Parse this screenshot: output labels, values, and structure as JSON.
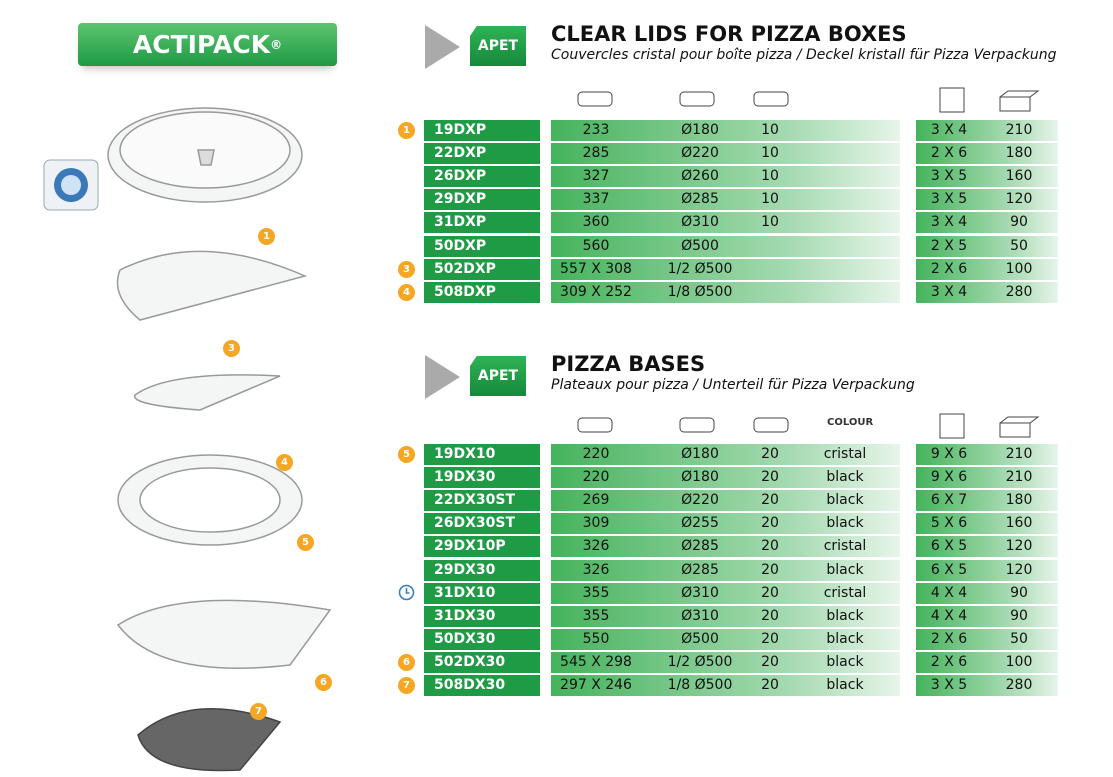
{
  "brand": {
    "name": "ACTIPACK",
    "mark": "®"
  },
  "images": [
    {
      "label": "1"
    },
    {
      "label": "3"
    },
    {
      "label": "4"
    },
    {
      "label": "5"
    },
    {
      "label": "6"
    },
    {
      "label": "7"
    }
  ],
  "sections": [
    {
      "badge": "APET",
      "title": "CLEAR LIDS FOR PIZZA BOXES",
      "subtitle": "Couvercles cristal pour boîte pizza / Deckel kristall für Pizza Verpackung",
      "colour_header": null,
      "rows": [
        {
          "marker": "1",
          "code": "19DXP",
          "size": "233",
          "diameter": "Ø180",
          "height": "10",
          "colour": null,
          "pack": "3 X 4",
          "qty": "210"
        },
        {
          "marker": null,
          "code": "22DXP",
          "size": "285",
          "diameter": "Ø220",
          "height": "10",
          "colour": null,
          "pack": "2 X 6",
          "qty": "180"
        },
        {
          "marker": null,
          "code": "26DXP",
          "size": "327",
          "diameter": "Ø260",
          "height": "10",
          "colour": null,
          "pack": "3 X 5",
          "qty": "160"
        },
        {
          "marker": null,
          "code": "29DXP",
          "size": "337",
          "diameter": "Ø285",
          "height": "10",
          "colour": null,
          "pack": "3 X 5",
          "qty": "120"
        },
        {
          "marker": null,
          "code": "31DXP",
          "size": "360",
          "diameter": "Ø310",
          "height": "10",
          "colour": null,
          "pack": "3 X 4",
          "qty": "90"
        },
        {
          "marker": null,
          "code": "50DXP",
          "size": "560",
          "diameter": "Ø500",
          "height": null,
          "colour": null,
          "pack": "2 X 5",
          "qty": "50"
        },
        {
          "marker": "3",
          "code": "502DXP",
          "size": "557 X 308",
          "diameter": "1/2 Ø500",
          "height": null,
          "colour": null,
          "pack": "2 X 6",
          "qty": "100"
        },
        {
          "marker": "4",
          "code": "508DXP",
          "size": "309 X 252",
          "diameter": "1/8 Ø500",
          "height": null,
          "colour": null,
          "pack": "3 X 4",
          "qty": "280"
        }
      ]
    },
    {
      "badge": "APET",
      "title": "PIZZA BASES",
      "subtitle": "Plateaux pour pizza / Unterteil für Pizza Verpackung",
      "colour_header": "COLOUR",
      "rows": [
        {
          "marker": "5",
          "code": "19DX10",
          "size": "220",
          "diameter": "Ø180",
          "height": "20",
          "colour": "cristal",
          "pack": "9 X 6",
          "qty": "210"
        },
        {
          "marker": null,
          "code": "19DX30",
          "size": "220",
          "diameter": "Ø180",
          "height": "20",
          "colour": "black",
          "pack": "9 X 6",
          "qty": "210"
        },
        {
          "marker": null,
          "code": "22DX30ST",
          "size": "269",
          "diameter": "Ø220",
          "height": "20",
          "colour": "black",
          "pack": "6 X 7",
          "qty": "180"
        },
        {
          "marker": null,
          "code": "26DX30ST",
          "size": "309",
          "diameter": "Ø255",
          "height": "20",
          "colour": "black",
          "pack": "5 X 6",
          "qty": "160"
        },
        {
          "marker": null,
          "code": "29DX10P",
          "size": "326",
          "diameter": "Ø285",
          "height": "20",
          "colour": "cristal",
          "pack": "6 X 5",
          "qty": "120"
        },
        {
          "marker": null,
          "code": "29DX30",
          "size": "326",
          "diameter": "Ø285",
          "height": "20",
          "colour": "black",
          "pack": "6 X 5",
          "qty": "120"
        },
        {
          "marker": null,
          "icon": "clock",
          "code": "31DX10",
          "size": "355",
          "diameter": "Ø310",
          "height": "20",
          "colour": "cristal",
          "pack": "4 X 4",
          "qty": "90"
        },
        {
          "marker": null,
          "code": "31DX30",
          "size": "355",
          "diameter": "Ø310",
          "height": "20",
          "colour": "black",
          "pack": "4 X 4",
          "qty": "90"
        },
        {
          "marker": null,
          "code": "50DX30",
          "size": "550",
          "diameter": "Ø500",
          "height": "20",
          "colour": "black",
          "pack": "2 X 6",
          "qty": "50"
        },
        {
          "marker": "6",
          "code": "502DX30",
          "size": "545 X 298",
          "diameter": "1/2 Ø500",
          "height": "20",
          "colour": "black",
          "pack": "2 X 6",
          "qty": "100"
        },
        {
          "marker": "7",
          "code": "508DX30",
          "size": "297 X 246",
          "diameter": "1/8 Ø500",
          "height": "20",
          "colour": "black",
          "pack": "3 X 5",
          "qty": "280"
        }
      ]
    }
  ]
}
